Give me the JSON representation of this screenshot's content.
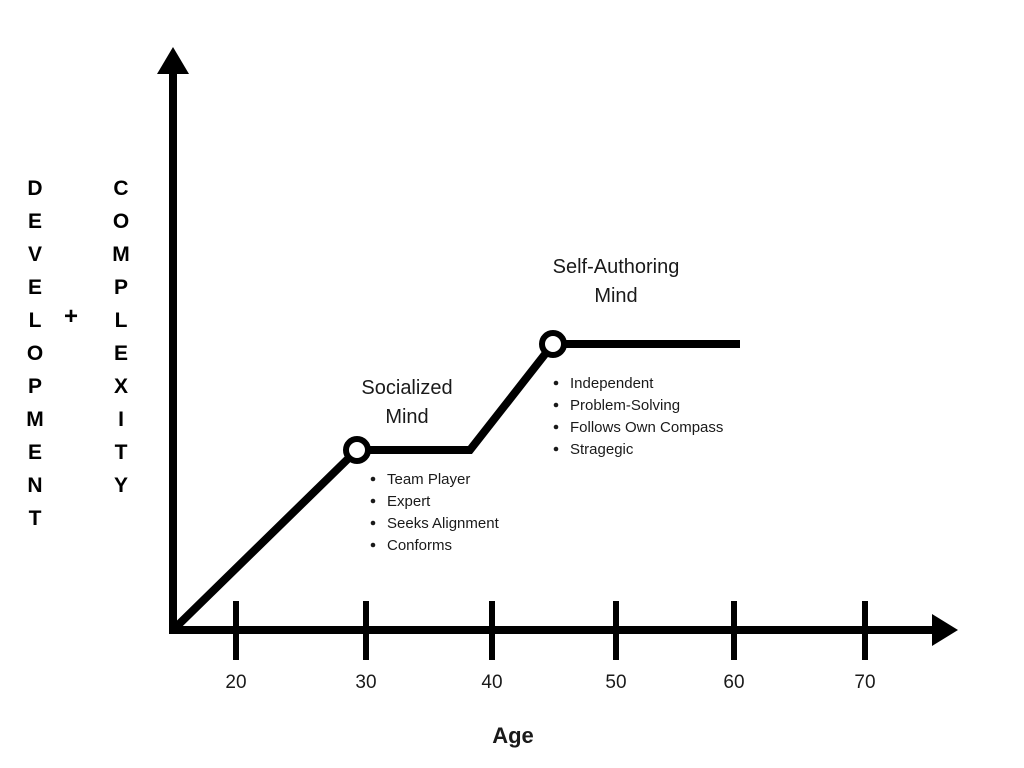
{
  "y_axis_label": {
    "left_word": "DEVELOPMENT",
    "plus": "+",
    "right_word": "COMPLEXITY"
  },
  "x_axis": {
    "title": "Age",
    "ticks": [
      "20",
      "30",
      "40",
      "50",
      "60",
      "70"
    ]
  },
  "stages": [
    {
      "title_lines": [
        "Socialized",
        "Mind"
      ],
      "bullets": [
        "Team Player",
        "Expert",
        "Seeks Alignment",
        "Conforms"
      ]
    },
    {
      "title_lines": [
        "Self-Authoring",
        "Mind"
      ],
      "bullets": [
        "Independent",
        "Problem-Solving",
        "Follows Own Compass",
        "Stragegic"
      ]
    }
  ],
  "colors": {
    "line": "#000000",
    "text": "#1a1a1a",
    "background": "#ffffff"
  }
}
